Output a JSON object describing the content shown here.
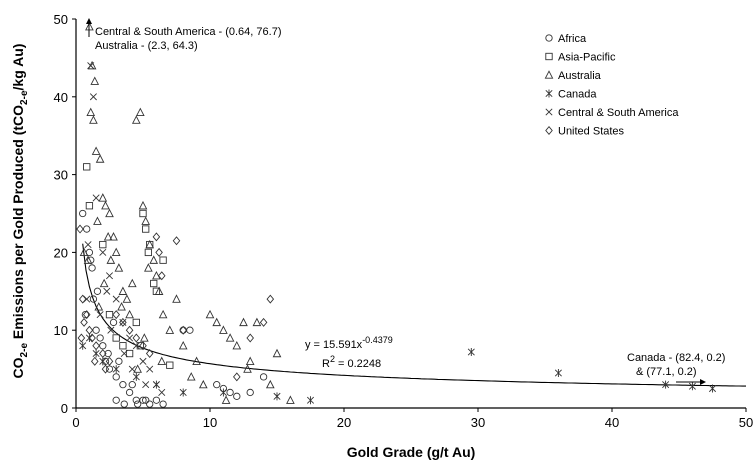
{
  "chart_data": {
    "type": "scatter",
    "title": "",
    "xlabel": "Gold Grade (g/t Au)",
    "ylabel_parts": [
      "CO",
      "2-e",
      " Emissions per Gold Produced (tCO",
      "2-e",
      "/kg Au)"
    ],
    "xlim": [
      0,
      50
    ],
    "ylim": [
      0,
      50
    ],
    "x_ticks": [
      0,
      10,
      20,
      30,
      40,
      50
    ],
    "y_ticks": [
      0,
      10,
      20,
      30,
      40,
      50
    ],
    "legend_position": "top-right",
    "series": [
      {
        "name": "Africa",
        "marker": "circle",
        "x": [
          0.5,
          0.8,
          1.0,
          1.2,
          1.5,
          1.8,
          2.0,
          2.2,
          2.5,
          3.0,
          3.5,
          4.0,
          4.5,
          5.0,
          5.5,
          6.0,
          6.5,
          1.3,
          2.8,
          0.7,
          1.1,
          1.6,
          2.4,
          3.2,
          4.2,
          8.0,
          8.5,
          10.5,
          11.0,
          11.5,
          12.0,
          13.0,
          14.0,
          3.0,
          3.6,
          4.6,
          5.2
        ],
        "y": [
          25,
          23,
          20,
          18,
          10,
          9,
          8,
          6,
          5,
          4,
          3,
          2,
          1,
          1,
          0.5,
          1,
          0.5,
          14,
          11,
          12,
          19,
          15,
          7,
          6,
          3,
          10,
          10,
          3,
          2.5,
          2,
          1.5,
          2,
          4,
          1,
          0.5,
          0.5,
          1
        ]
      },
      {
        "name": "Asia-Pacific",
        "marker": "square",
        "x": [
          0.8,
          1.0,
          2.0,
          3.0,
          3.5,
          4.0,
          4.5,
          5.0,
          5.2,
          5.5,
          5.8,
          6.0,
          6.5,
          7.0,
          2.5,
          4.8,
          5.4
        ],
        "y": [
          31,
          26,
          21,
          9,
          8,
          7,
          11,
          25,
          23,
          21,
          16,
          15,
          19,
          5.5,
          12,
          8,
          20
        ]
      },
      {
        "name": "Australia",
        "marker": "triangle",
        "x": [
          1.0,
          1.2,
          1.4,
          1.1,
          1.3,
          1.5,
          1.8,
          2.0,
          2.2,
          2.5,
          2.8,
          3.0,
          3.2,
          3.5,
          3.8,
          4.0,
          4.5,
          4.8,
          5.0,
          5.2,
          5.5,
          5.8,
          6.0,
          6.2,
          6.5,
          7.0,
          7.5,
          8.0,
          9.0,
          10.0,
          10.5,
          11.0,
          11.5,
          12.0,
          12.5,
          13.0,
          13.5,
          15.0,
          16.0,
          1.6,
          2.4,
          2.6,
          3.4,
          4.2,
          5.4,
          0.9,
          1.7,
          2.1,
          4.6,
          5.1,
          6.4,
          8.6,
          9.5,
          11.2,
          12.8,
          14.5,
          0.6
        ],
        "y": [
          49,
          44,
          42,
          38,
          37,
          33,
          32,
          27,
          26,
          25,
          22,
          20,
          18,
          15,
          14,
          12,
          37,
          38,
          26,
          24,
          21,
          19,
          17,
          15,
          12,
          10,
          14,
          8,
          6,
          12,
          11,
          10,
          9,
          8,
          11,
          6,
          11,
          7,
          1,
          24,
          22,
          19,
          13,
          16,
          18,
          19,
          13,
          16,
          5,
          9,
          6,
          4,
          3,
          1,
          5,
          3,
          20
        ]
      },
      {
        "name": "Canada",
        "marker": "asterisk",
        "x": [
          0.5,
          1.0,
          1.5,
          2.0,
          3.0,
          4.5,
          6.0,
          8.0,
          11.0,
          15.0,
          17.5,
          29.5,
          36.0,
          44.0,
          46.0,
          47.5
        ],
        "y": [
          8,
          9,
          7,
          6,
          5,
          4,
          3,
          2,
          2,
          1.5,
          1,
          7.2,
          4.5,
          3,
          2.8,
          2.5
        ]
      },
      {
        "name": "Central & South America",
        "marker": "cross",
        "x": [
          1.1,
          1.3,
          1.5,
          2.0,
          2.5,
          3.0,
          3.5,
          4.0,
          4.5,
          5.0,
          5.5,
          6.0,
          0.8,
          1.8,
          2.6,
          3.6,
          4.2,
          5.2,
          6.4,
          2.3,
          0.9
        ],
        "y": [
          44,
          40,
          27,
          20,
          17,
          14,
          11,
          9,
          8,
          6,
          5,
          3,
          14,
          12,
          10,
          7,
          5,
          3,
          2,
          15,
          21
        ]
      },
      {
        "name": "United States",
        "marker": "diamond",
        "x": [
          0.3,
          0.5,
          0.8,
          1.0,
          1.2,
          1.5,
          2.0,
          2.5,
          3.0,
          3.5,
          4.0,
          4.5,
          5.0,
          5.5,
          6.0,
          6.2,
          6.4,
          7.5,
          8.0,
          12.0,
          13.0,
          14.0,
          14.5,
          0.4,
          0.6,
          1.4,
          2.2
        ],
        "y": [
          23,
          14,
          12,
          10,
          9,
          8,
          7,
          6,
          12,
          11,
          10,
          9,
          8,
          7,
          22,
          20,
          17,
          21.5,
          10,
          4,
          9,
          11,
          14,
          9,
          11,
          6,
          5
        ]
      }
    ],
    "fit": {
      "equation_base": "y = 15.591x",
      "equation_exp": "-0.4379",
      "r2_base": "R",
      "r2_exp": "2",
      "r2_value": " = 0.2248",
      "a": 15.591,
      "b": -0.4379
    },
    "annotations": {
      "top_line1": "Central & South America - (0.64, 76.7)",
      "top_line2": "Australia - (2.3, 64.3)",
      "right_line1": "Canada - (82.4, 0.2)",
      "right_line2": "& (77.1, 0.2)"
    }
  }
}
